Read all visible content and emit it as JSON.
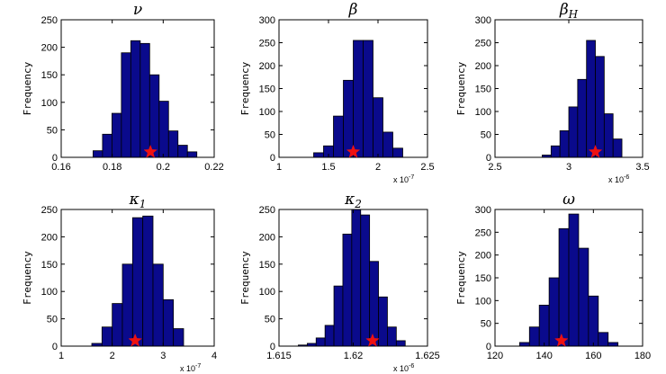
{
  "chart_data": [
    {
      "type": "bar",
      "title": "ν",
      "title_sub": "",
      "ylabel": "Frequency",
      "xlim": [
        0.16,
        0.22
      ],
      "ylim": [
        0,
        250
      ],
      "xticks": [
        0.16,
        0.18,
        0.2,
        0.22
      ],
      "xtick_labels": [
        "0.16",
        "0.18",
        "0.2",
        "0.22"
      ],
      "yticks": [
        0,
        50,
        100,
        150,
        200,
        250
      ],
      "ytick_labels": [
        "0",
        "50",
        "100",
        "150",
        "200",
        "250"
      ],
      "multiplier": "",
      "bin_edges": [
        0.1725,
        0.1762,
        0.1799,
        0.1836,
        0.1873,
        0.191,
        0.1947,
        0.1984,
        0.2021,
        0.2058,
        0.2095,
        0.2132
      ],
      "counts": [
        12,
        42,
        80,
        190,
        212,
        207,
        150,
        102,
        48,
        22,
        10
      ],
      "star_x": 0.195,
      "bar_color": "#0a0a8c",
      "star_color": "#ee1111"
    },
    {
      "type": "bar",
      "title": "β",
      "title_sub": "",
      "ylabel": "Frequency",
      "xlim": [
        1.0,
        2.5
      ],
      "ylim": [
        0,
        300
      ],
      "xticks": [
        1,
        1.5,
        2,
        2.5
      ],
      "xtick_labels": [
        "1",
        "1.5",
        "2",
        "2.5"
      ],
      "yticks": [
        0,
        50,
        100,
        150,
        200,
        250,
        300
      ],
      "ytick_labels": [
        "0",
        "50",
        "100",
        "150",
        "200",
        "250",
        "300"
      ],
      "multiplier": "x 10^{-7}",
      "multiplier_base": "x 10",
      "multiplier_exp": "-7",
      "bin_edges": [
        1.35,
        1.45,
        1.55,
        1.65,
        1.75,
        1.85,
        1.95,
        2.05,
        2.15,
        2.25
      ],
      "counts": [
        10,
        25,
        90,
        168,
        255,
        255,
        130,
        55,
        20
      ],
      "star_x": 1.75,
      "bar_color": "#0a0a8c",
      "star_color": "#ee1111"
    },
    {
      "type": "bar",
      "title": "β",
      "title_sub": "H",
      "ylabel": "Frequency",
      "xlim": [
        2.5,
        3.5
      ],
      "ylim": [
        0,
        300
      ],
      "xticks": [
        2.5,
        3,
        3.5
      ],
      "xtick_labels": [
        "2.5",
        "3",
        "3.5"
      ],
      "yticks": [
        0,
        50,
        100,
        150,
        200,
        250,
        300
      ],
      "ytick_labels": [
        "0",
        "50",
        "100",
        "150",
        "200",
        "250",
        "300"
      ],
      "multiplier": "x 10^{-6}",
      "multiplier_base": "x 10",
      "multiplier_exp": "-6",
      "bin_edges": [
        2.82,
        2.88,
        2.94,
        3.0,
        3.06,
        3.12,
        3.18,
        3.24,
        3.3,
        3.36
      ],
      "counts": [
        5,
        25,
        58,
        110,
        170,
        255,
        220,
        95,
        40
      ],
      "star_x": 3.18,
      "bar_color": "#0a0a8c",
      "star_color": "#ee1111"
    },
    {
      "type": "bar",
      "title": "κ",
      "title_sub": "1",
      "ylabel": "Frequency",
      "xlim": [
        1,
        4
      ],
      "ylim": [
        0,
        250
      ],
      "xticks": [
        1,
        2,
        3,
        4
      ],
      "xtick_labels": [
        "1",
        "2",
        "3",
        "4"
      ],
      "yticks": [
        0,
        50,
        100,
        150,
        200,
        250
      ],
      "ytick_labels": [
        "0",
        "50",
        "100",
        "150",
        "200",
        "250"
      ],
      "multiplier": "x 10^{-7}",
      "multiplier_base": "x 10",
      "multiplier_exp": "-7",
      "bin_edges": [
        1.6,
        1.8,
        2.0,
        2.2,
        2.4,
        2.6,
        2.8,
        3.0,
        3.2,
        3.4
      ],
      "counts": [
        5,
        35,
        78,
        150,
        235,
        238,
        150,
        85,
        32
      ],
      "star_x": 2.45,
      "bar_color": "#0a0a8c",
      "star_color": "#ee1111"
    },
    {
      "type": "bar",
      "title": "κ",
      "title_sub": "2",
      "ylabel": "Frequency",
      "xlim": [
        1.615,
        1.625
      ],
      "ylim": [
        0,
        250
      ],
      "xticks": [
        1.615,
        1.62,
        1.625
      ],
      "xtick_labels": [
        "1.615",
        "1.62",
        "1.625"
      ],
      "yticks": [
        0,
        50,
        100,
        150,
        200,
        250
      ],
      "ytick_labels": [
        "0",
        "50",
        "100",
        "150",
        "200",
        "250"
      ],
      "multiplier": "x 10^{-6}",
      "multiplier_base": "x 10",
      "multiplier_exp": "-6",
      "bin_edges": [
        1.6163,
        1.6169,
        1.6175,
        1.6181,
        1.6187,
        1.6193,
        1.6199,
        1.6205,
        1.6211,
        1.6217,
        1.6223,
        1.6229,
        1.6235
      ],
      "counts": [
        2,
        5,
        15,
        38,
        110,
        205,
        250,
        240,
        155,
        90,
        35,
        10
      ],
      "star_x": 1.6213,
      "bar_color": "#0a0a8c",
      "star_color": "#ee1111"
    },
    {
      "type": "bar",
      "title": "ω",
      "title_sub": "",
      "ylabel": "Frequency",
      "xlim": [
        120,
        180
      ],
      "ylim": [
        0,
        300
      ],
      "xticks": [
        120,
        140,
        160,
        180
      ],
      "xtick_labels": [
        "120",
        "140",
        "160",
        "180"
      ],
      "yticks": [
        0,
        50,
        100,
        150,
        200,
        250,
        300
      ],
      "ytick_labels": [
        "0",
        "50",
        "100",
        "150",
        "200",
        "250",
        "300"
      ],
      "multiplier": "",
      "bin_edges": [
        130,
        134,
        138,
        142,
        146,
        150,
        154,
        158,
        162,
        166,
        170
      ],
      "counts": [
        8,
        42,
        90,
        150,
        258,
        290,
        215,
        110,
        30,
        8
      ],
      "star_x": 147,
      "bar_color": "#0a0a8c",
      "star_color": "#ee1111"
    }
  ]
}
